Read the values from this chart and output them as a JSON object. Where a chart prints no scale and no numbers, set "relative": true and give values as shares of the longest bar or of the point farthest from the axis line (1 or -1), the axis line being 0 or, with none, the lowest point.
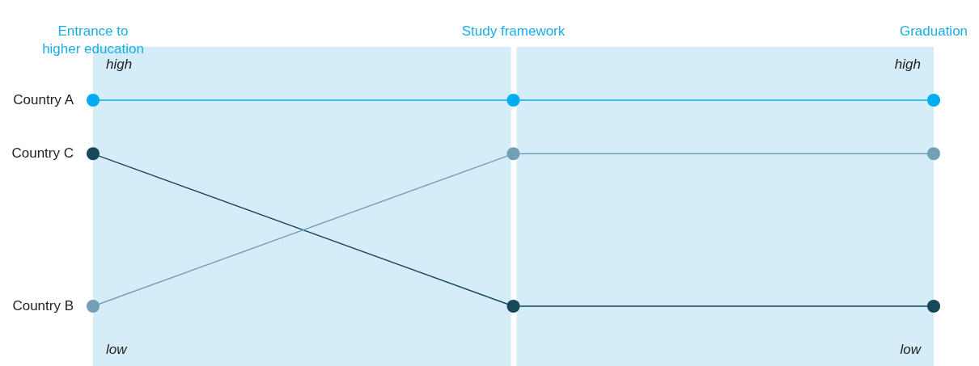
{
  "chart_data": {
    "type": "line",
    "relative": true,
    "marker": "circle",
    "legend": false,
    "categories": [
      "Entrance to higher education",
      "Study framework",
      "Graduation"
    ],
    "series": [
      {
        "name": "Country A",
        "color": "#00aeef",
        "values": [
          1,
          1,
          1
        ]
      },
      {
        "name": "Country C",
        "color": "#17485a",
        "values": [
          0.74,
          0,
          0
        ]
      },
      {
        "name": "Country B",
        "color": "#73a0b4",
        "values": [
          0,
          0.74,
          0.74
        ]
      }
    ],
    "bands": [
      {
        "axis": "x",
        "from": "Entrance to higher education",
        "to": "Study framework",
        "color": "#d5edf9"
      },
      {
        "axis": "x",
        "from": "Study framework",
        "to": "Graduation",
        "color": "#d5edf9"
      }
    ],
    "annotations": [
      "high",
      "high",
      "low",
      "low"
    ]
  }
}
